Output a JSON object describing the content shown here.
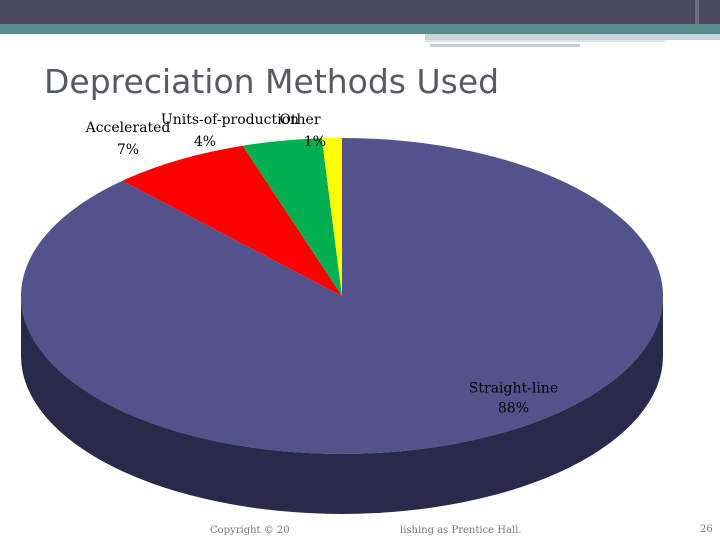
{
  "slide": {
    "title": "Depreciation Methods Used",
    "footer_left": "Copyright © 20",
    "footer_right": "lishing as Prentice Hall.",
    "page_number": "26"
  },
  "chart_data": {
    "type": "pie",
    "style": "3d",
    "title": "",
    "legend": "none",
    "slices": [
      {
        "label": "Straight-line",
        "value_label": "88%",
        "value": 88,
        "color": "#52538a",
        "side_color": "#29294a"
      },
      {
        "label": "Accelerated",
        "value_label": "7%",
        "value": 7,
        "color": "#ff0000",
        "side_color": "#990000"
      },
      {
        "label": "Units-of-production",
        "value_label": "4%",
        "value": 4,
        "color": "#00b050",
        "side_color": "#006b30"
      },
      {
        "label": "Other",
        "value_label": "1%",
        "value": 1,
        "color": "#ffff00",
        "side_color": "#999900"
      }
    ]
  }
}
